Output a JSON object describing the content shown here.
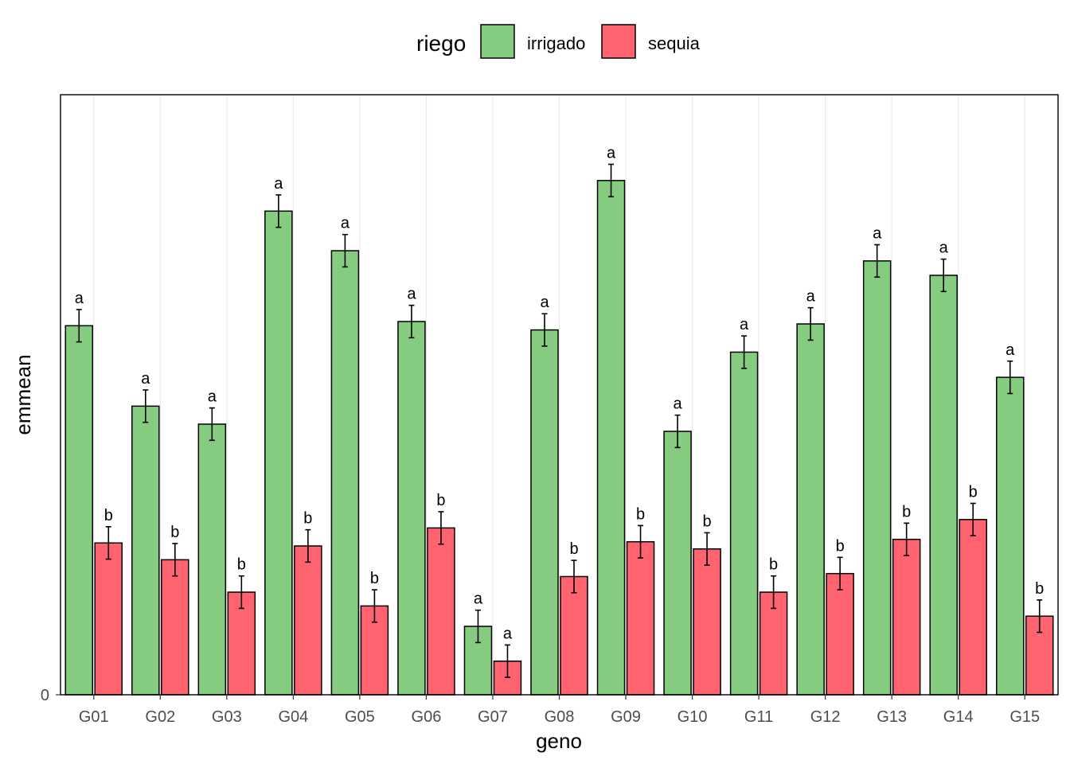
{
  "chart_data": {
    "type": "bar",
    "xlabel": "geno",
    "ylabel": "emmean",
    "categories": [
      "G01",
      "G02",
      "G03",
      "G04",
      "G05",
      "G06",
      "G07",
      "G08",
      "G09",
      "G10",
      "G11",
      "G12",
      "G13",
      "G14",
      "G15"
    ],
    "y_ticks": [
      0
    ],
    "ylim": [
      0,
      1.0
    ],
    "grid": "vertical major lines",
    "legend": {
      "title": "riego",
      "position": "top",
      "items": [
        {
          "label": "irrigado",
          "color": "#85cc80"
        },
        {
          "label": "sequia",
          "color": "#ff6370"
        }
      ]
    },
    "series": [
      {
        "name": "irrigado",
        "color": "#85cc80",
        "values": [
          0.615,
          0.481,
          0.451,
          0.806,
          0.74,
          0.622,
          0.114,
          0.608,
          0.857,
          0.439,
          0.571,
          0.618,
          0.723,
          0.699,
          0.529
        ],
        "error": [
          0.027,
          0.027,
          0.027,
          0.027,
          0.027,
          0.027,
          0.027,
          0.027,
          0.027,
          0.027,
          0.027,
          0.027,
          0.027,
          0.027,
          0.027
        ],
        "letters": [
          "a",
          "a",
          "a",
          "a",
          "a",
          "a",
          "a",
          "a",
          "a",
          "a",
          "a",
          "a",
          "a",
          "a",
          "a"
        ]
      },
      {
        "name": "sequia",
        "color": "#ff6370",
        "values": [
          0.253,
          0.225,
          0.171,
          0.248,
          0.148,
          0.278,
          0.056,
          0.197,
          0.255,
          0.243,
          0.171,
          0.202,
          0.259,
          0.292,
          0.131
        ],
        "error": [
          0.027,
          0.027,
          0.027,
          0.027,
          0.027,
          0.027,
          0.027,
          0.027,
          0.027,
          0.027,
          0.027,
          0.027,
          0.027,
          0.027,
          0.027
        ],
        "letters": [
          "b",
          "b",
          "b",
          "b",
          "b",
          "b",
          "a",
          "b",
          "b",
          "b",
          "b",
          "b",
          "b",
          "b",
          "b"
        ]
      }
    ]
  }
}
